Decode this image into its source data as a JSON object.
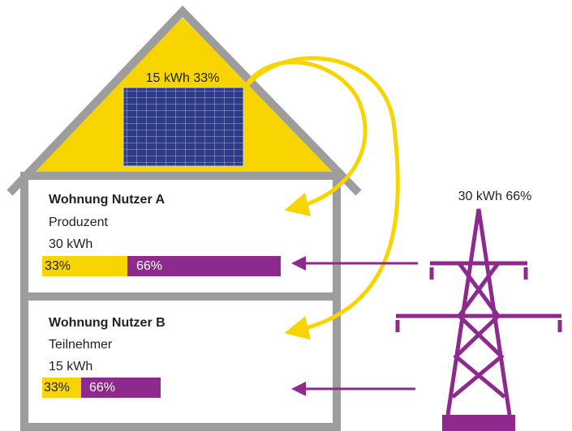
{
  "roof_label": "15 kWh 33%",
  "grid_label": "30 kWh 66%",
  "apartments": [
    {
      "title": "Wohnung Nutzer A",
      "role": "Produzent",
      "energy": "30 kWh",
      "own_share": "33%",
      "grid_share": "66%"
    },
    {
      "title": "Wohnung Nutzer B",
      "role": "Teilnehmer",
      "energy": "15 kWh",
      "own_share": "33%",
      "grid_share": "66%"
    }
  ]
}
